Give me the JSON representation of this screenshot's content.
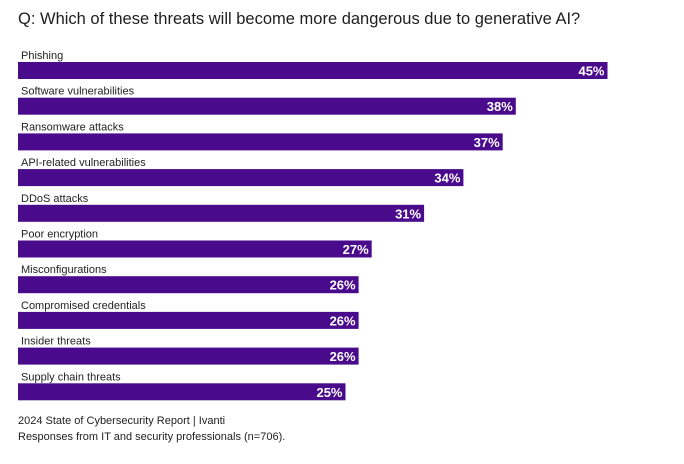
{
  "chart_data": {
    "type": "bar",
    "orientation": "horizontal",
    "title": "Q: Which of these threats will become more dangerous due to generative AI?",
    "categories": [
      "Phishing",
      "Software vulnerabilities",
      "Ransomware attacks",
      "API-related vulnerabilities",
      "DDoS attacks",
      "Poor encryption",
      "Misconfigurations",
      "Compromised credentials",
      "Insider threats",
      "Supply chain threats"
    ],
    "values": [
      45,
      38,
      37,
      34,
      31,
      27,
      26,
      26,
      26,
      25
    ],
    "value_labels": [
      "45%",
      "38%",
      "37%",
      "34%",
      "31%",
      "27%",
      "26%",
      "26%",
      "26%",
      "25%"
    ],
    "unit": "%",
    "bar_color": "#4a0a8c",
    "grid": false,
    "legend": "none"
  },
  "footer": {
    "source": "2024 State of Cybersecurity Report | Ivanti",
    "note": "Responses from IT and security professionals (n=706)."
  },
  "colors": {
    "bar": "#4a0a8c",
    "bar_label": "#ffffff",
    "text": "#222222"
  }
}
